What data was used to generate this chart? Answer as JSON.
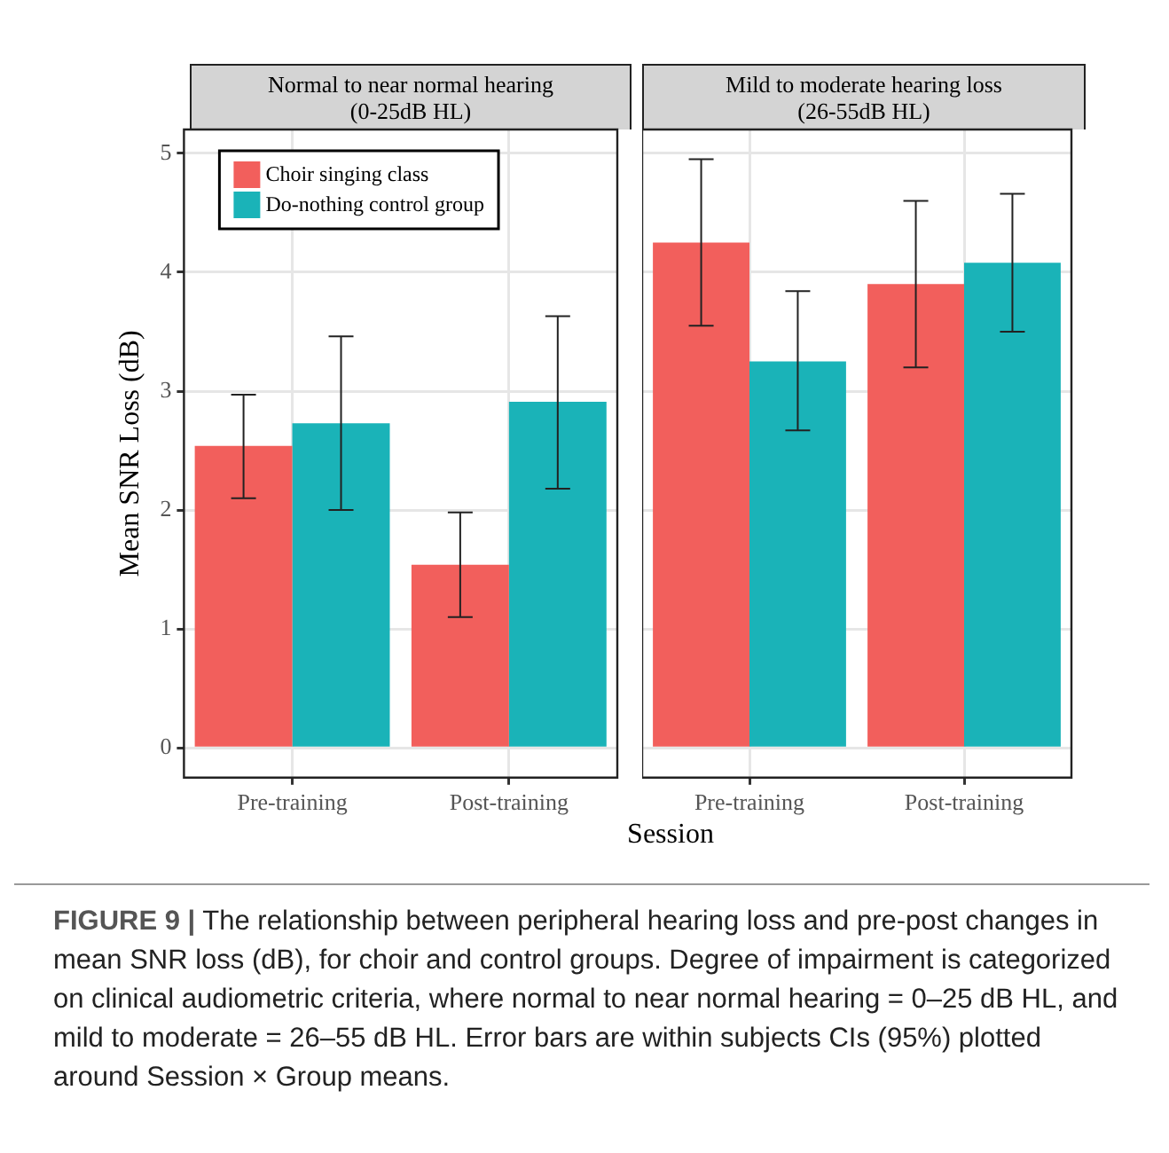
{
  "chart_data": [
    {
      "type": "bar",
      "title": "Normal to near normal hearing\n(0-25dB HL)",
      "ylabel": "Mean SNR Loss (dB)",
      "xlabel": "Session",
      "categories": [
        "Pre-training",
        "Post-training"
      ],
      "series": [
        {
          "name": "Choir singing class",
          "color": "#f25f5c",
          "values": [
            2.54,
            1.54
          ],
          "errors": [
            [
              2.1,
              2.97
            ],
            [
              1.1,
              1.98
            ]
          ]
        },
        {
          "name": "Do-nothing control group",
          "color": "#1ab3b8",
          "values": [
            2.73,
            2.91
          ],
          "errors": [
            [
              2.0,
              3.46
            ],
            [
              2.18,
              3.63
            ]
          ]
        }
      ],
      "ylim": [
        -0.25,
        5.2
      ],
      "yticks": [
        0,
        1,
        2,
        3,
        4,
        5
      ],
      "grid": true,
      "legend": "top left",
      "annotations": [
        "FIGURE 9 | The relationship between peripheral hearing loss and pre-post changes in mean SNR loss (dB), for choir and control groups. Degree of impairment is categorized on clinical audiometric criteria, where normal to near normal hearing = 0–25 dB HL, and mild to moderate = 26–55 dB HL. Error bars are within subjects CIs (95%) plotted around Session × Group means."
      ]
    },
    {
      "type": "bar",
      "title": "Mild to moderate hearing loss\n(26-55dB HL)",
      "categories": [
        "Pre-training",
        "Post-training"
      ],
      "series": [
        {
          "color": "#f25f5c",
          "values": [
            4.25,
            3.9
          ],
          "errors": [
            [
              3.55,
              4.95
            ],
            [
              3.2,
              4.6
            ]
          ]
        },
        {
          "color": "#1ab3b8",
          "values": [
            3.25,
            4.08
          ],
          "errors": [
            [
              2.67,
              3.84
            ],
            [
              3.5,
              4.66
            ]
          ]
        }
      ],
      "ylim": [
        -0.25,
        5.2
      ],
      "yticks": [
        0,
        1,
        2,
        3,
        4,
        5
      ],
      "grid": true,
      "tick_labels": "x"
    }
  ]
}
